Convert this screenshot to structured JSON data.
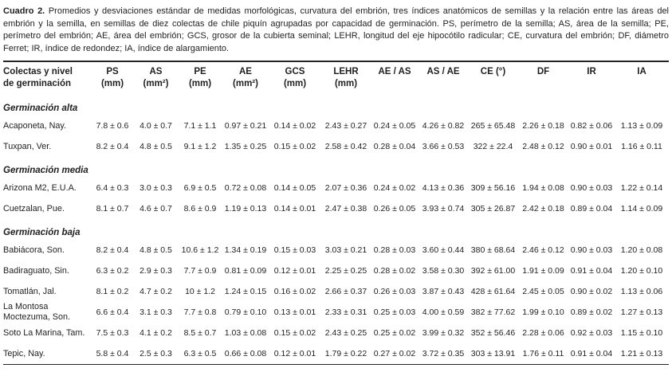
{
  "caption": {
    "label": "Cuadro 2.",
    "text": "Promedios y desviaciones estándar de medidas morfológicas, curvatura del embrión, tres índices anatómicos de semillas y la relación entre las áreas del embrión y la semilla, en semillas de diez colectas de chile piquín agrupadas por capacidad de germinación. PS, perímetro de la semilla; AS, área de la semilla; PE, perímetro del embrión; AE, área del embrión; GCS, grosor de la cubierta seminal; LEHR, longitud del eje hipocótilo radicular; CE, curvatura del embrión; DF, diámetro Ferret; IR, índice de redondez; IA, índice de alargamiento."
  },
  "table": {
    "header": {
      "row_label_line1": "Colectas y nivel",
      "row_label_line2": "de germinación",
      "columns": [
        {
          "line1": "PS",
          "line2": "(mm)"
        },
        {
          "line1": "AS",
          "line2": "(mm²)"
        },
        {
          "line1": "PE",
          "line2": "(mm)"
        },
        {
          "line1": "AE",
          "line2": "(mm²)"
        },
        {
          "line1": "GCS",
          "line2": "(mm)"
        },
        {
          "line1": "LEHR",
          "line2": "(mm)"
        },
        {
          "line1": "AE / AS",
          "line2": ""
        },
        {
          "line1": "AS / AE",
          "line2": ""
        },
        {
          "line1": "CE (°)",
          "line2": ""
        },
        {
          "line1": "DF",
          "line2": ""
        },
        {
          "line1": "IR",
          "line2": ""
        },
        {
          "line1": "IA",
          "line2": ""
        }
      ]
    },
    "groups": [
      {
        "label": "Germinación alta",
        "rows": [
          {
            "name": "Acaponeta, Nay.",
            "values": [
              "7.8 ± 0.6",
              "4.0 ± 0.7",
              "7.1 ± 1.1",
              "0.97 ± 0.21",
              "0.14 ± 0.02",
              "2.43 ± 0.27",
              "0.24 ± 0.05",
              "4.26 ± 0.82",
              "265 ± 65.48",
              "2.26 ± 0.18",
              "0.82 ± 0.06",
              "1.13 ± 0.09"
            ]
          },
          {
            "name": "Tuxpan, Ver.",
            "values": [
              "8.2 ± 0.4",
              "4.8 ± 0.5",
              "9.1 ± 1.2",
              "1.35 ± 0.25",
              "0.15 ± 0.02",
              "2.58 ± 0.42",
              "0.28 ± 0.04",
              "3.66 ± 0.53",
              "322 ± 22.4",
              "2.48 ± 0.12",
              "0.90 ± 0.01",
              "1.16 ± 0.11"
            ]
          }
        ]
      },
      {
        "label": "Germinación media",
        "rows": [
          {
            "name": "Arizona M2, E.U.A.",
            "values": [
              "6.4 ± 0.3",
              "3.0 ± 0.3",
              "6.9 ± 0.5",
              "0.72 ± 0.08",
              "0.14 ± 0.05",
              "2.07 ± 0.36",
              "0.24 ± 0.02",
              "4.13 ± 0.36",
              "309 ± 56.16",
              "1.94 ± 0.08",
              "0.90 ± 0.03",
              "1.22 ± 0.14"
            ]
          },
          {
            "name": "Cuetzalan, Pue.",
            "values": [
              "8.1 ± 0.7",
              "4.6 ± 0.7",
              "8.6 ± 0.9",
              "1.19 ± 0.13",
              "0.14 ± 0.01",
              "2.47 ± 0.38",
              "0.26 ± 0.05",
              "3.93 ± 0.74",
              "305 ± 26.87",
              "2.42 ± 0.18",
              "0.89 ± 0.04",
              "1.14 ± 0.09"
            ]
          }
        ]
      },
      {
        "label": "Germinación baja",
        "rows": [
          {
            "name": "Babiácora, Son.",
            "values": [
              "8.2 ± 0.4",
              "4.8 ± 0.5",
              "10.6 ± 1.2",
              "1.34 ± 0.19",
              "0.15 ± 0.03",
              "3.03 ± 0.21",
              "0.28 ± 0.03",
              "3.60 ± 0.44",
              "380 ± 68.64",
              "2.46 ± 0.12",
              "0.90 ± 0.03",
              "1.20 ± 0.08"
            ]
          },
          {
            "name": "Badiraguato, Sin.",
            "values": [
              "6.3 ± 0.2",
              "2.9 ± 0.3",
              "7.7 ± 0.9",
              "0.81 ± 0.09",
              "0.12 ± 0.01",
              "2.25 ± 0.25",
              "0.28 ± 0.02",
              "3.58 ± 0.30",
              "392 ± 61.00",
              "1.91 ± 0.09",
              "0.91 ± 0.04",
              "1.20 ± 0.10"
            ]
          },
          {
            "name": "Tomatlán, Jal.",
            "values": [
              "8.1 ± 0.2",
              "4.7 ± 0.2",
              "10 ± 1.2",
              "1.24 ± 0.15",
              "0.16 ± 0.02",
              "2.66 ± 0.37",
              "0.26 ± 0.03",
              "3.87 ± 0.43",
              "428 ± 61.64",
              "2.45 ± 0.05",
              "0.90 ± 0.02",
              "1.13 ± 0.06"
            ]
          },
          {
            "name": "La Montosa Moctezuma, Son.",
            "values": [
              "6.6 ± 0.4",
              "3.1 ± 0.3",
              "7.7 ± 0.8",
              "0.79 ± 0.10",
              "0.13 ± 0.01",
              "2.33 ± 0.31",
              "0.25 ± 0.03",
              "4.00 ± 0.59",
              "382 ± 77.62",
              "1.99 ± 0.10",
              "0.89 ± 0.02",
              "1.27 ± 0.13"
            ]
          },
          {
            "name": "Soto La Marina, Tam.",
            "values": [
              "7.5 ± 0.3",
              "4.1 ± 0.2",
              "8.5 ± 0.7",
              "1.03 ± 0.08",
              "0.15 ± 0.02",
              "2.43 ± 0.25",
              "0.25 ± 0.02",
              "3.99 ± 0.32",
              "352 ± 56.46",
              "2.28 ± 0.06",
              "0.92 ± 0.03",
              "1.15 ± 0.10"
            ]
          },
          {
            "name": "Tepic, Nay.",
            "values": [
              "5.8 ± 0.4",
              "2.5 ± 0.3",
              "6.3 ± 0.5",
              "0.66 ± 0.08",
              "0.12 ± 0.01",
              "1.79 ± 0.22",
              "0.27 ± 0.02",
              "3.72 ± 0.35",
              "303 ± 13.91",
              "1.76 ± 0.11",
              "0.91 ± 0.04",
              "1.21 ± 0.13"
            ]
          }
        ]
      }
    ]
  },
  "colors": {
    "text": "#1f1f1f",
    "rule": "#242424",
    "background": "#ffffff"
  }
}
